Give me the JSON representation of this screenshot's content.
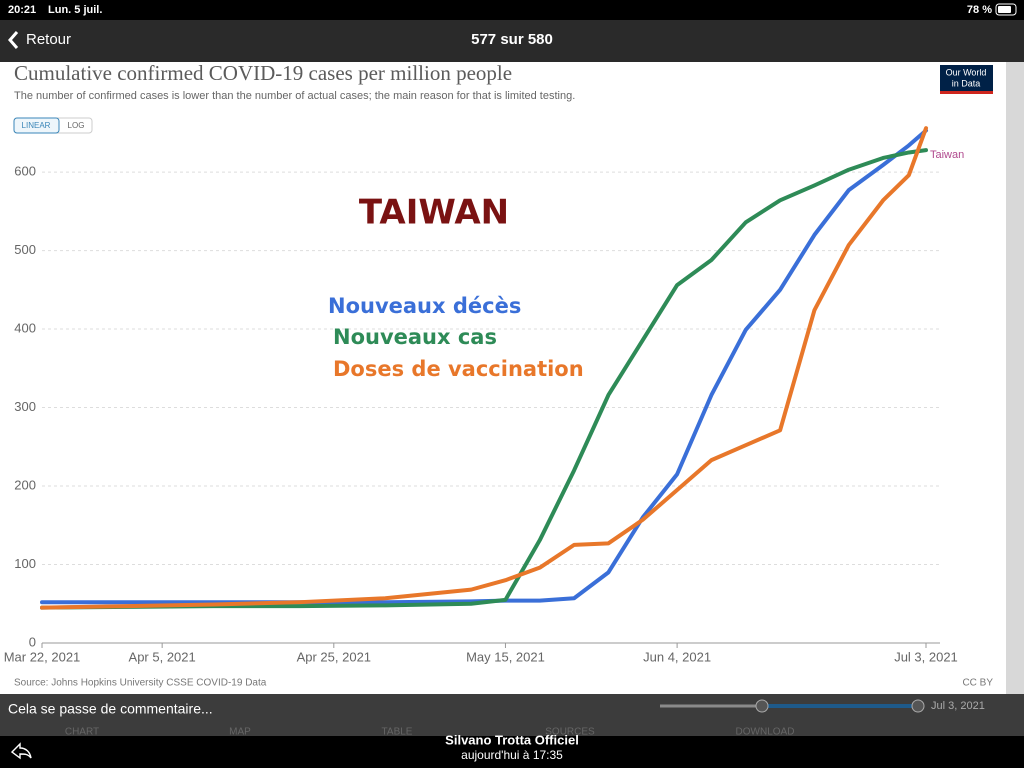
{
  "status_bar": {
    "time": "20:21",
    "date": "Lun. 5 juil.",
    "battery": "78 %"
  },
  "nav": {
    "back": "Retour",
    "counter": "577 sur 580"
  },
  "chart_data": {
    "type": "line",
    "title": "Cumulative confirmed COVID-19 cases per million people",
    "subtitle": "The number of confirmed cases is lower than the number of actual cases; the main reason for that is limited testing.",
    "scale_buttons": [
      "LINEAR",
      "LOG"
    ],
    "logo": [
      "Our World",
      "in Data"
    ],
    "annotation": "TAIWAN",
    "entity_label": "Taiwan",
    "source": "Source: Johns Hopkins University CSSE COVID-19 Data",
    "license": "CC BY",
    "x": [
      "2021-03-22",
      "2021-04-01",
      "2021-04-11",
      "2021-04-21",
      "2021-05-01",
      "2021-05-11",
      "2021-05-15",
      "2021-05-19",
      "2021-05-23",
      "2021-05-27",
      "2021-05-31",
      "2021-06-04",
      "2021-06-08",
      "2021-06-12",
      "2021-06-16",
      "2021-06-20",
      "2021-06-24",
      "2021-06-28",
      "2021-07-01",
      "2021-07-03"
    ],
    "xlim": [
      "2021-03-22",
      "2021-07-03"
    ],
    "xticks": [
      {
        "value": "2021-03-22",
        "label": "Mar 22, 2021"
      },
      {
        "value": "2021-04-05",
        "label": "Apr 5, 2021"
      },
      {
        "value": "2021-04-25",
        "label": "Apr 25, 2021"
      },
      {
        "value": "2021-05-15",
        "label": "May 15, 2021"
      },
      {
        "value": "2021-06-04",
        "label": "Jun 4, 2021"
      },
      {
        "value": "2021-07-03",
        "label": "Jul 3, 2021"
      }
    ],
    "ylim": [
      0,
      660
    ],
    "yticks": [
      0,
      100,
      200,
      300,
      400,
      500,
      600
    ],
    "grid": true,
    "series": [
      {
        "name": "Nouveaux décès",
        "color": "#3a6fd8",
        "values": [
          52,
          52,
          52,
          52,
          52,
          53,
          54,
          54,
          57,
          90,
          160,
          215,
          316,
          399,
          450,
          520,
          577,
          609,
          634,
          653
        ]
      },
      {
        "name": "Nouveaux cas",
        "color": "#2e8b57",
        "values": [
          45,
          46,
          47,
          47,
          48,
          50,
          55,
          131,
          220,
          316,
          386,
          456,
          488,
          536,
          564,
          583,
          603,
          618,
          625,
          628
        ]
      },
      {
        "name": "Doses de vaccination",
        "color": "#e8772a",
        "values": [
          45,
          47,
          49,
          52,
          57,
          68,
          80,
          96,
          125,
          127,
          157,
          195,
          233,
          252,
          271,
          424,
          507,
          564,
          596,
          656
        ]
      }
    ]
  },
  "overlay": {
    "caption": "Cela se passe de commentaire...",
    "slider_date": "Jul 3, 2021",
    "tabs": [
      "CHART",
      "MAP",
      "TABLE",
      "SOURCES",
      "DOWNLOAD"
    ]
  },
  "footer": {
    "author": "Silvano Trotta Officiel",
    "time": "aujourd'hui à 17:35"
  }
}
